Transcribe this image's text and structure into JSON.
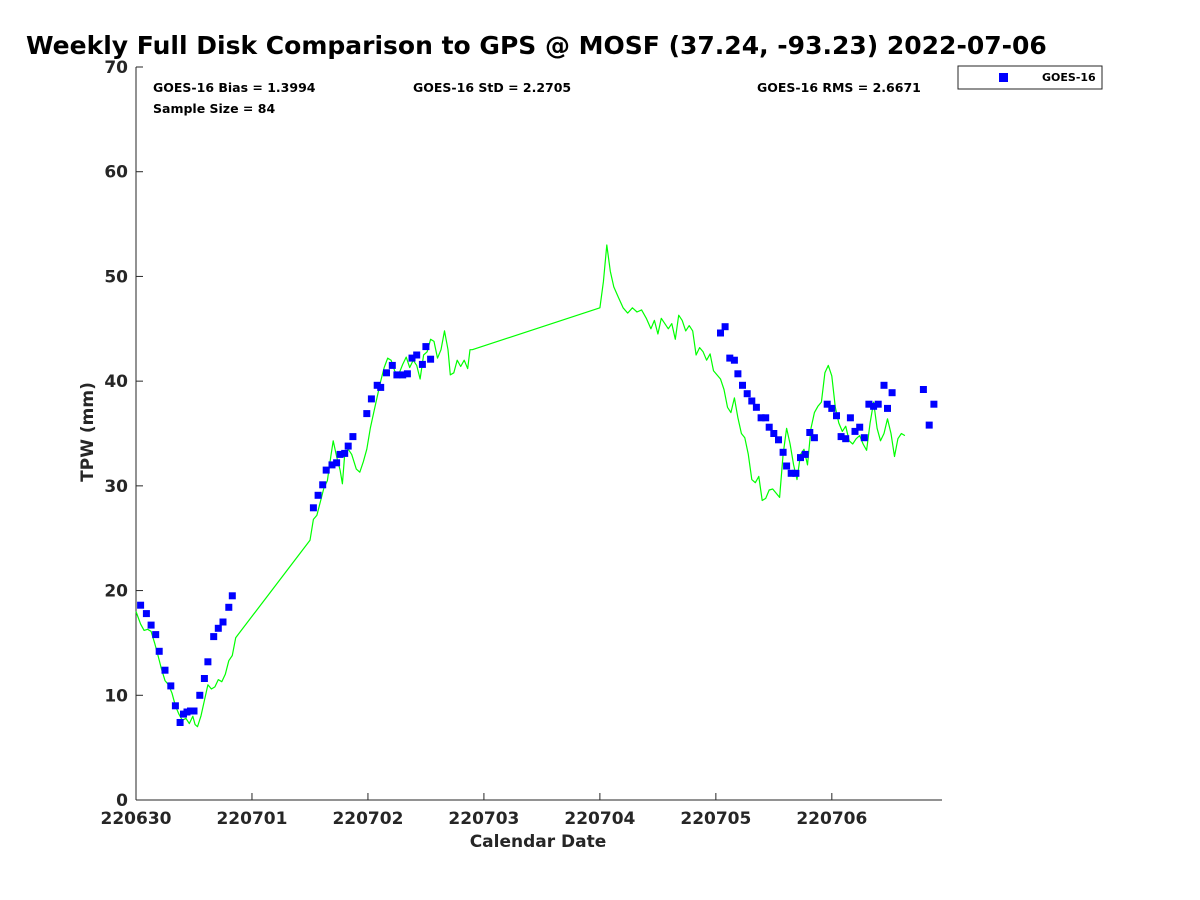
{
  "chart_data": {
    "type": "line+scatter",
    "title": "Weekly Full Disk Comparison to GPS @ MOSF (37.24, -93.23) 2022-07-06",
    "xlabel": "Calendar Date",
    "ylabel": "TPW (mm)",
    "xlim": [
      0,
      6.95
    ],
    "ylim": [
      0,
      70
    ],
    "x_ticks": [
      {
        "value": 0,
        "label": "220630"
      },
      {
        "value": 1,
        "label": "220701"
      },
      {
        "value": 2,
        "label": "220702"
      },
      {
        "value": 3,
        "label": "220703"
      },
      {
        "value": 4,
        "label": "220704"
      },
      {
        "value": 5,
        "label": "220705"
      },
      {
        "value": 6,
        "label": "220706"
      }
    ],
    "y_ticks": [
      {
        "value": 0,
        "label": "0"
      },
      {
        "value": 10,
        "label": "10"
      },
      {
        "value": 20,
        "label": "20"
      },
      {
        "value": 30,
        "label": "30"
      },
      {
        "value": 40,
        "label": "40"
      },
      {
        "value": 50,
        "label": "50"
      },
      {
        "value": 60,
        "label": "60"
      },
      {
        "value": 70,
        "label": "70"
      }
    ],
    "stats": {
      "bias": "GOES-16 Bias = 1.3994",
      "std": "GOES-16 StD = 2.2705",
      "rms": "GOES-16 RMS = 2.6671",
      "sample": "Sample Size = 84"
    },
    "legend": {
      "label": "GOES-16",
      "position": "top-right outside"
    },
    "series": [
      {
        "name": "GPS",
        "kind": "line",
        "color": "#00ff00",
        "points": [
          [
            0.0,
            18.0
          ],
          [
            0.04,
            16.8
          ],
          [
            0.07,
            16.2
          ],
          [
            0.1,
            16.3
          ],
          [
            0.13,
            16.1
          ],
          [
            0.16,
            15.0
          ],
          [
            0.19,
            13.8
          ],
          [
            0.22,
            12.5
          ],
          [
            0.25,
            11.4
          ],
          [
            0.28,
            11.0
          ],
          [
            0.31,
            10.2
          ],
          [
            0.34,
            9.0
          ],
          [
            0.37,
            8.2
          ],
          [
            0.4,
            7.6
          ],
          [
            0.43,
            7.8
          ],
          [
            0.46,
            7.3
          ],
          [
            0.49,
            8.0
          ],
          [
            0.51,
            7.2
          ],
          [
            0.53,
            7.0
          ],
          [
            0.56,
            8.0
          ],
          [
            0.59,
            9.5
          ],
          [
            0.62,
            11.0
          ],
          [
            0.65,
            10.6
          ],
          [
            0.68,
            10.8
          ],
          [
            0.71,
            11.5
          ],
          [
            0.74,
            11.3
          ],
          [
            0.77,
            12.0
          ],
          [
            0.8,
            13.3
          ],
          [
            0.83,
            13.8
          ],
          [
            0.86,
            15.5
          ],
          [
            1.5,
            24.8
          ],
          [
            1.53,
            26.8
          ],
          [
            1.56,
            27.2
          ],
          [
            1.59,
            28.5
          ],
          [
            1.62,
            29.8
          ],
          [
            1.65,
            30.5
          ],
          [
            1.68,
            32.8
          ],
          [
            1.7,
            34.3
          ],
          [
            1.73,
            32.8
          ],
          [
            1.76,
            31.5
          ],
          [
            1.78,
            30.2
          ],
          [
            1.8,
            33.0
          ],
          [
            1.83,
            33.5
          ],
          [
            1.86,
            33.0
          ],
          [
            1.9,
            31.6
          ],
          [
            1.93,
            31.3
          ],
          [
            1.96,
            32.3
          ],
          [
            1.99,
            33.5
          ],
          [
            2.02,
            35.5
          ],
          [
            2.05,
            37.0
          ],
          [
            2.08,
            38.5
          ],
          [
            2.11,
            40.0
          ],
          [
            2.14,
            41.3
          ],
          [
            2.17,
            42.2
          ],
          [
            2.2,
            42.0
          ],
          [
            2.23,
            41.0
          ],
          [
            2.26,
            40.5
          ],
          [
            2.3,
            41.6
          ],
          [
            2.33,
            42.3
          ],
          [
            2.36,
            41.3
          ],
          [
            2.39,
            42.0
          ],
          [
            2.42,
            41.5
          ],
          [
            2.45,
            40.2
          ],
          [
            2.48,
            42.5
          ],
          [
            2.51,
            42.8
          ],
          [
            2.54,
            44.0
          ],
          [
            2.57,
            43.8
          ],
          [
            2.6,
            42.2
          ],
          [
            2.63,
            43.0
          ],
          [
            2.66,
            44.8
          ],
          [
            2.69,
            43.0
          ],
          [
            2.71,
            40.6
          ],
          [
            2.74,
            40.8
          ],
          [
            2.77,
            42.0
          ],
          [
            2.8,
            41.4
          ],
          [
            2.83,
            42.0
          ],
          [
            2.86,
            41.2
          ],
          [
            2.88,
            43.0
          ],
          [
            2.9,
            43.0
          ],
          [
            4.0,
            47.0
          ],
          [
            4.03,
            49.5
          ],
          [
            4.06,
            53.0
          ],
          [
            4.09,
            50.5
          ],
          [
            4.12,
            49.0
          ],
          [
            4.16,
            48.0
          ],
          [
            4.2,
            47.0
          ],
          [
            4.24,
            46.5
          ],
          [
            4.28,
            47.0
          ],
          [
            4.32,
            46.6
          ],
          [
            4.36,
            46.8
          ],
          [
            4.4,
            46.0
          ],
          [
            4.44,
            45.0
          ],
          [
            4.47,
            45.8
          ],
          [
            4.5,
            44.5
          ],
          [
            4.53,
            46.0
          ],
          [
            4.56,
            45.5
          ],
          [
            4.59,
            45.0
          ],
          [
            4.62,
            45.5
          ],
          [
            4.65,
            44.0
          ],
          [
            4.68,
            46.3
          ],
          [
            4.71,
            45.8
          ],
          [
            4.74,
            44.8
          ],
          [
            4.77,
            45.3
          ],
          [
            4.8,
            44.8
          ],
          [
            4.83,
            42.5
          ],
          [
            4.86,
            43.2
          ],
          [
            4.89,
            42.8
          ],
          [
            4.92,
            42.0
          ],
          [
            4.95,
            42.6
          ],
          [
            4.98,
            41.0
          ],
          [
            5.01,
            40.6
          ],
          [
            5.04,
            40.2
          ],
          [
            5.07,
            39.2
          ],
          [
            5.1,
            37.5
          ],
          [
            5.13,
            37.0
          ],
          [
            5.16,
            38.4
          ],
          [
            5.19,
            36.5
          ],
          [
            5.22,
            35.0
          ],
          [
            5.25,
            34.6
          ],
          [
            5.28,
            33.0
          ],
          [
            5.31,
            30.6
          ],
          [
            5.34,
            30.3
          ],
          [
            5.37,
            30.9
          ],
          [
            5.4,
            28.6
          ],
          [
            5.43,
            28.8
          ],
          [
            5.46,
            29.6
          ],
          [
            5.49,
            29.7
          ],
          [
            5.52,
            29.3
          ],
          [
            5.55,
            28.9
          ],
          [
            5.58,
            33.0
          ],
          [
            5.61,
            35.5
          ],
          [
            5.64,
            34.0
          ],
          [
            5.67,
            32.0
          ],
          [
            5.7,
            30.6
          ],
          [
            5.73,
            33.0
          ],
          [
            5.76,
            33.5
          ],
          [
            5.79,
            32.0
          ],
          [
            5.82,
            35.5
          ],
          [
            5.85,
            37.0
          ],
          [
            5.88,
            37.6
          ],
          [
            5.91,
            38.0
          ],
          [
            5.94,
            40.8
          ],
          [
            5.97,
            41.5
          ],
          [
            6.0,
            40.5
          ],
          [
            6.03,
            37.5
          ],
          [
            6.06,
            36.0
          ],
          [
            6.09,
            35.2
          ],
          [
            6.12,
            35.7
          ],
          [
            6.15,
            34.3
          ],
          [
            6.18,
            34.0
          ],
          [
            6.21,
            34.5
          ],
          [
            6.24,
            34.8
          ],
          [
            6.27,
            34.0
          ],
          [
            6.3,
            33.4
          ],
          [
            6.33,
            36.0
          ],
          [
            6.36,
            38.0
          ],
          [
            6.39,
            35.5
          ],
          [
            6.42,
            34.3
          ],
          [
            6.45,
            35.0
          ],
          [
            6.48,
            36.4
          ],
          [
            6.51,
            35.0
          ],
          [
            6.54,
            32.8
          ],
          [
            6.57,
            34.5
          ],
          [
            6.6,
            35.0
          ],
          [
            6.63,
            34.8
          ]
        ]
      },
      {
        "name": "GOES-16",
        "kind": "scatter",
        "color": "#0000ff",
        "points": [
          [
            0.04,
            18.6
          ],
          [
            0.09,
            17.8
          ],
          [
            0.13,
            16.7
          ],
          [
            0.17,
            15.8
          ],
          [
            0.2,
            14.2
          ],
          [
            0.25,
            12.4
          ],
          [
            0.3,
            10.9
          ],
          [
            0.34,
            9.0
          ],
          [
            0.38,
            7.4
          ],
          [
            0.41,
            8.2
          ],
          [
            0.44,
            8.4
          ],
          [
            0.47,
            8.5
          ],
          [
            0.5,
            8.5
          ],
          [
            0.55,
            10.0
          ],
          [
            0.59,
            11.6
          ],
          [
            0.62,
            13.2
          ],
          [
            0.67,
            15.6
          ],
          [
            0.71,
            16.4
          ],
          [
            0.75,
            17.0
          ],
          [
            0.8,
            18.4
          ],
          [
            0.83,
            19.5
          ],
          [
            1.53,
            27.9
          ],
          [
            1.57,
            29.1
          ],
          [
            1.61,
            30.1
          ],
          [
            1.64,
            31.5
          ],
          [
            1.69,
            32.0
          ],
          [
            1.73,
            32.2
          ],
          [
            1.76,
            33.0
          ],
          [
            1.8,
            33.1
          ],
          [
            1.83,
            33.8
          ],
          [
            1.87,
            34.7
          ],
          [
            1.99,
            36.9
          ],
          [
            2.03,
            38.3
          ],
          [
            2.08,
            39.6
          ],
          [
            2.11,
            39.4
          ],
          [
            2.16,
            40.8
          ],
          [
            2.21,
            41.5
          ],
          [
            2.25,
            40.6
          ],
          [
            2.3,
            40.6
          ],
          [
            2.34,
            40.7
          ],
          [
            2.38,
            42.2
          ],
          [
            2.42,
            42.5
          ],
          [
            2.47,
            41.6
          ],
          [
            2.5,
            43.3
          ],
          [
            2.54,
            42.1
          ],
          [
            5.04,
            44.6
          ],
          [
            5.08,
            45.2
          ],
          [
            5.12,
            42.2
          ],
          [
            5.16,
            42.0
          ],
          [
            5.19,
            40.7
          ],
          [
            5.23,
            39.6
          ],
          [
            5.27,
            38.8
          ],
          [
            5.31,
            38.1
          ],
          [
            5.35,
            37.5
          ],
          [
            5.39,
            36.5
          ],
          [
            5.43,
            36.5
          ],
          [
            5.46,
            35.6
          ],
          [
            5.5,
            35.0
          ],
          [
            5.54,
            34.4
          ],
          [
            5.58,
            33.2
          ],
          [
            5.61,
            31.9
          ],
          [
            5.65,
            31.2
          ],
          [
            5.69,
            31.2
          ],
          [
            5.73,
            32.7
          ],
          [
            5.77,
            33.0
          ],
          [
            5.81,
            35.1
          ],
          [
            5.85,
            34.6
          ],
          [
            5.96,
            37.8
          ],
          [
            6.0,
            37.4
          ],
          [
            6.04,
            36.7
          ],
          [
            6.08,
            34.7
          ],
          [
            6.12,
            34.5
          ],
          [
            6.16,
            36.5
          ],
          [
            6.2,
            35.2
          ],
          [
            6.24,
            35.6
          ],
          [
            6.28,
            34.6
          ],
          [
            6.32,
            37.8
          ],
          [
            6.36,
            37.6
          ],
          [
            6.4,
            37.8
          ],
          [
            6.45,
            39.6
          ],
          [
            6.48,
            37.4
          ],
          [
            6.52,
            38.9
          ],
          [
            6.79,
            39.2
          ],
          [
            6.84,
            35.8
          ],
          [
            6.88,
            37.8
          ]
        ]
      }
    ]
  }
}
